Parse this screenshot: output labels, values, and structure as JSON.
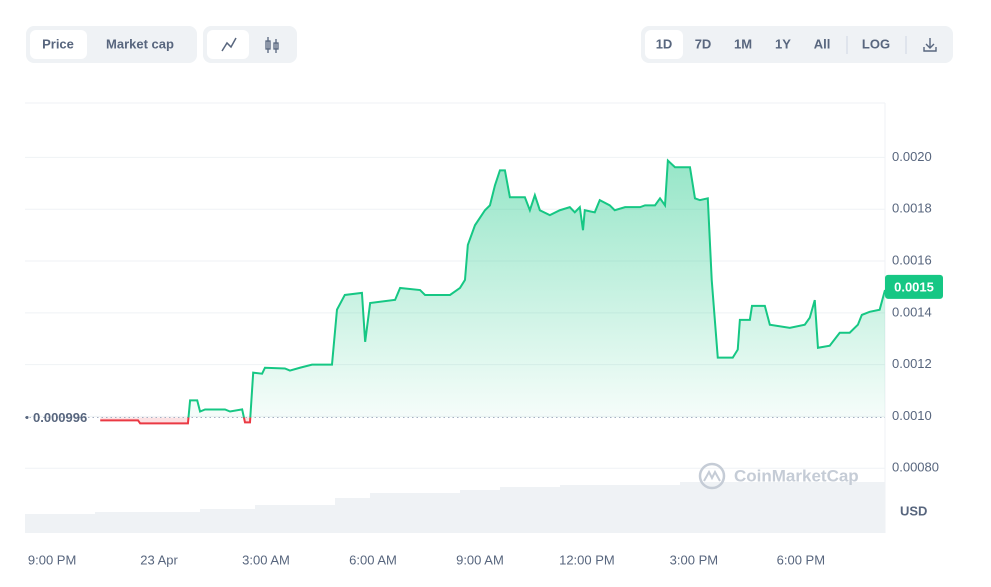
{
  "toolbar": {
    "tabs": [
      "Price",
      "Market cap"
    ],
    "ranges": [
      "1D",
      "7D",
      "1M",
      "1Y",
      "All"
    ],
    "log": "LOG"
  },
  "watermark": "CoinMarketCap",
  "chart_data": {
    "type": "line",
    "y_unit": "USD",
    "baseline": 0.000996,
    "current_price": 0.0015,
    "up_color": "#16c784",
    "down_color": "#ea3943",
    "grid": true,
    "xlim": [
      -0.76,
      23.36
    ],
    "ylim": [
      0.00055,
      0.00221
    ],
    "xticks": [
      {
        "value": 0,
        "label": "9:00 PM"
      },
      {
        "value": 3,
        "label": "23 Apr"
      },
      {
        "value": 6,
        "label": "3:00 AM"
      },
      {
        "value": 9,
        "label": "6:00 AM"
      },
      {
        "value": 12,
        "label": "9:00 AM"
      },
      {
        "value": 15,
        "label": "12:00 PM"
      },
      {
        "value": 18,
        "label": "3:00 PM"
      },
      {
        "value": 21,
        "label": "6:00 PM"
      }
    ],
    "yticks": [
      {
        "value": 0.0008,
        "label": "0.00080"
      },
      {
        "value": 0.001,
        "label": "0.0010"
      },
      0.0012,
      0.0014,
      0.0016,
      0.0018,
      {
        "value": 0.002,
        "label": "0.0020"
      }
    ],
    "x": [
      1.35,
      2.41,
      2.47,
      3.81,
      3.87,
      4.07,
      4.15,
      4.29,
      4.85,
      4.99,
      5.33,
      5.41,
      5.55,
      5.64,
      5.89,
      5.97,
      6.53,
      6.67,
      6.95,
      7.29,
      7.85,
      7.99,
      8.21,
      8.69,
      8.78,
      8.92,
      9.62,
      9.76,
      10.32,
      10.46,
      11.16,
      11.44,
      11.58,
      11.66,
      11.86,
      12.14,
      12.28,
      12.42,
      12.56,
      12.7,
      12.84,
      13.26,
      13.4,
      13.54,
      13.68,
      13.96,
      14.24,
      14.52,
      14.66,
      14.8,
      14.89,
      14.94,
      15.22,
      15.36,
      15.64,
      15.78,
      16.07,
      16.49,
      16.63,
      16.91,
      17.05,
      17.19,
      17.27,
      17.47,
      17.89,
      18.03,
      18.17,
      18.39,
      18.5,
      18.67,
      19.09,
      19.23,
      19.29,
      19.57,
      19.63,
      19.99,
      20.13,
      20.69,
      21.11,
      21.25,
      21.39,
      21.48,
      21.81,
      22.09,
      22.37,
      22.6,
      22.71,
      22.93,
      23.21,
      23.36
    ],
    "values": [
      0.000985,
      0.000985,
      0.000973,
      0.000973,
      0.001062,
      0.001062,
      0.001019,
      0.001027,
      0.001027,
      0.001019,
      0.001027,
      0.000977,
      0.000977,
      0.001169,
      0.001165,
      0.001188,
      0.001185,
      0.001177,
      0.001188,
      0.0012,
      0.0012,
      0.001412,
      0.001469,
      0.001477,
      0.001288,
      0.001438,
      0.00145,
      0.001496,
      0.001488,
      0.001469,
      0.001469,
      0.001496,
      0.001527,
      0.001662,
      0.001738,
      0.001796,
      0.001815,
      0.001892,
      0.00195,
      0.00195,
      0.001846,
      0.001846,
      0.001796,
      0.001854,
      0.001796,
      0.001777,
      0.001796,
      0.001808,
      0.001788,
      0.001808,
      0.001719,
      0.001796,
      0.001788,
      0.001835,
      0.001815,
      0.001796,
      0.001808,
      0.001808,
      0.001815,
      0.001815,
      0.001842,
      0.001815,
      0.001988,
      0.001962,
      0.001962,
      0.001842,
      0.001835,
      0.001842,
      0.001527,
      0.001227,
      0.001227,
      0.001258,
      0.001373,
      0.001373,
      0.001427,
      0.001427,
      0.001354,
      0.001342,
      0.001354,
      0.001381,
      0.001449,
      0.001265,
      0.001273,
      0.001323,
      0.001323,
      0.001354,
      0.001392,
      0.001404,
      0.001412,
      0.001488
    ]
  }
}
